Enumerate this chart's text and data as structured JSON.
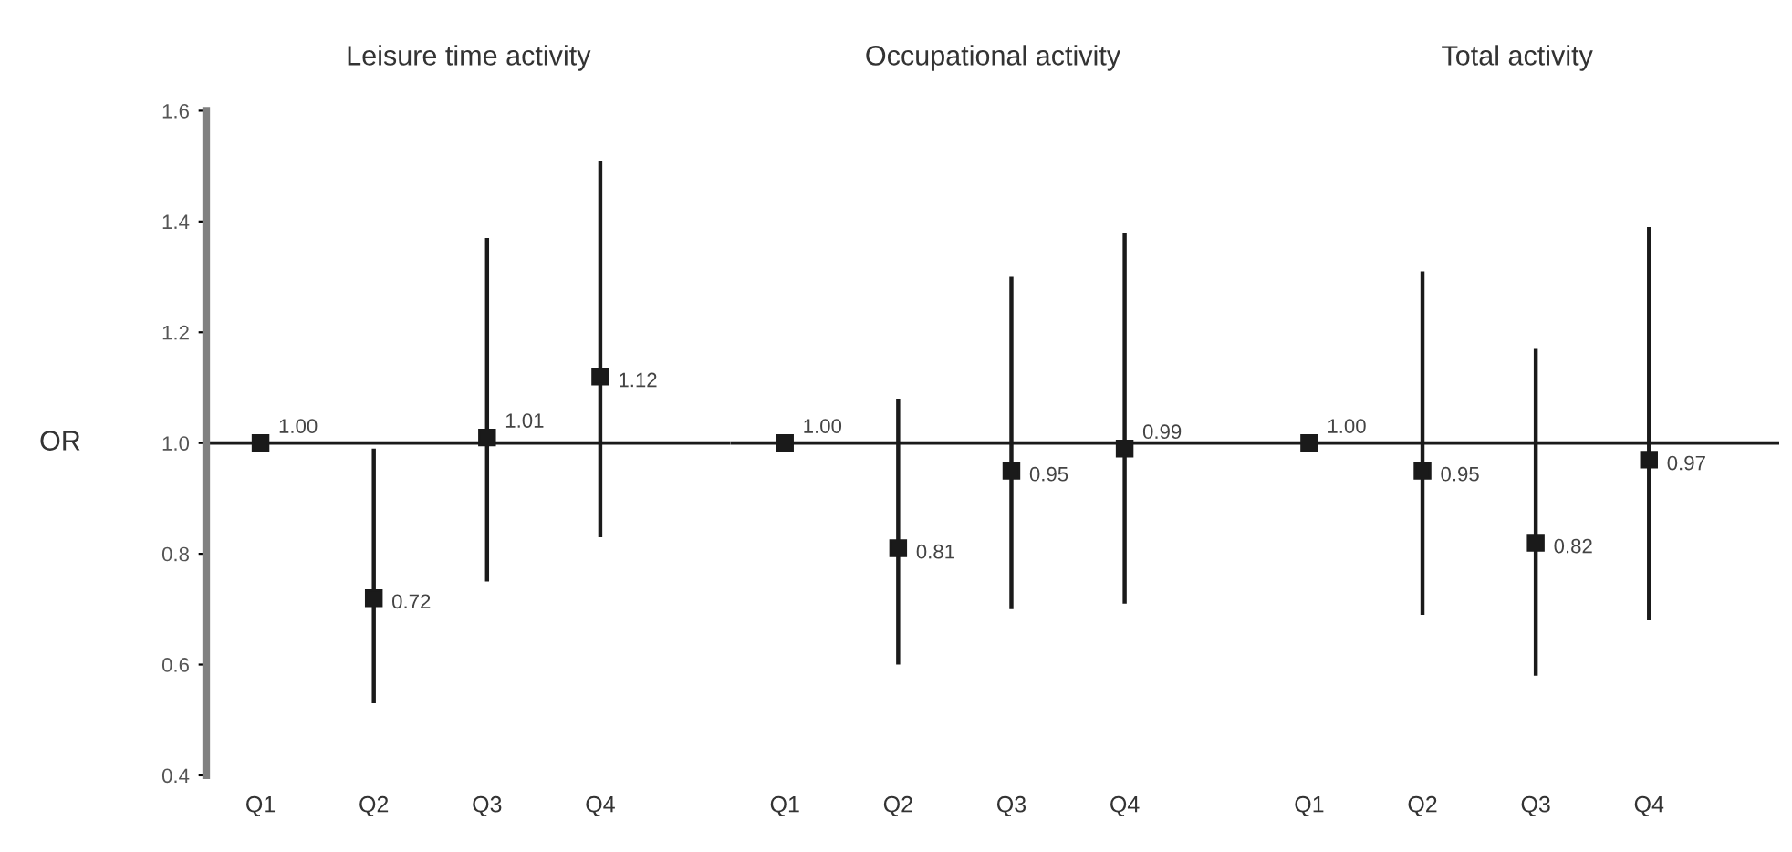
{
  "chart_data": [
    {
      "type": "scatter",
      "title": "Leisure time activity",
      "ylabel": "OR",
      "categories": [
        "Q1",
        "Q2",
        "Q3",
        "Q4"
      ],
      "ylim": [
        0.4,
        1.6
      ],
      "yticks": [
        0.4,
        0.6,
        0.8,
        {
          "value": 1.0,
          "label": "1.0"
        },
        1.2,
        1.4,
        1.6
      ],
      "marker": "square",
      "grid": false,
      "series": [
        {
          "color": "#1a1a1a",
          "values": [
            1.0,
            0.72,
            1.01,
            1.12
          ],
          "errors": [
            null,
            [
              0.53,
              0.99
            ],
            [
              0.75,
              1.37
            ],
            [
              0.83,
              1.51
            ]
          ],
          "value_labels": [
            "1.00",
            "0.72",
            "1.01",
            "1.12"
          ]
        }
      ],
      "ref_lines": [
        {
          "axis": "y",
          "value": 1.0,
          "color": "#1a1a1a"
        }
      ]
    },
    {
      "type": "scatter",
      "title": "Occupational activity",
      "categories": [
        "Q1",
        "Q2",
        "Q3",
        "Q4"
      ],
      "ylim": [
        0.4,
        1.6
      ],
      "tick_labels": "x",
      "marker": "square",
      "grid": false,
      "series": [
        {
          "color": "#1a1a1a",
          "values": [
            1.0,
            0.81,
            0.95,
            0.99
          ],
          "errors": [
            null,
            [
              0.6,
              1.08
            ],
            [
              0.7,
              1.3
            ],
            [
              0.71,
              1.38
            ]
          ],
          "value_labels": [
            "1.00",
            "0.81",
            "0.95",
            "0.99"
          ]
        }
      ],
      "ref_lines": [
        {
          "axis": "y",
          "value": 1.0,
          "color": "#1a1a1a"
        }
      ]
    },
    {
      "type": "scatter",
      "title": "Total activity",
      "categories": [
        "Q1",
        "Q2",
        "Q3",
        "Q4"
      ],
      "ylim": [
        0.4,
        1.6
      ],
      "tick_labels": "x",
      "marker": "square",
      "grid": false,
      "series": [
        {
          "color": "#1a1a1a",
          "values": [
            1.0,
            0.95,
            0.82,
            0.97
          ],
          "errors": [
            null,
            [
              0.69,
              1.31
            ],
            [
              0.58,
              1.17
            ],
            [
              0.68,
              1.39
            ]
          ],
          "value_labels": [
            "1.00",
            "0.95",
            "0.82",
            "0.97"
          ]
        }
      ],
      "ref_lines": [
        {
          "axis": "y",
          "value": 1.0,
          "color": "#1a1a1a"
        }
      ]
    }
  ]
}
